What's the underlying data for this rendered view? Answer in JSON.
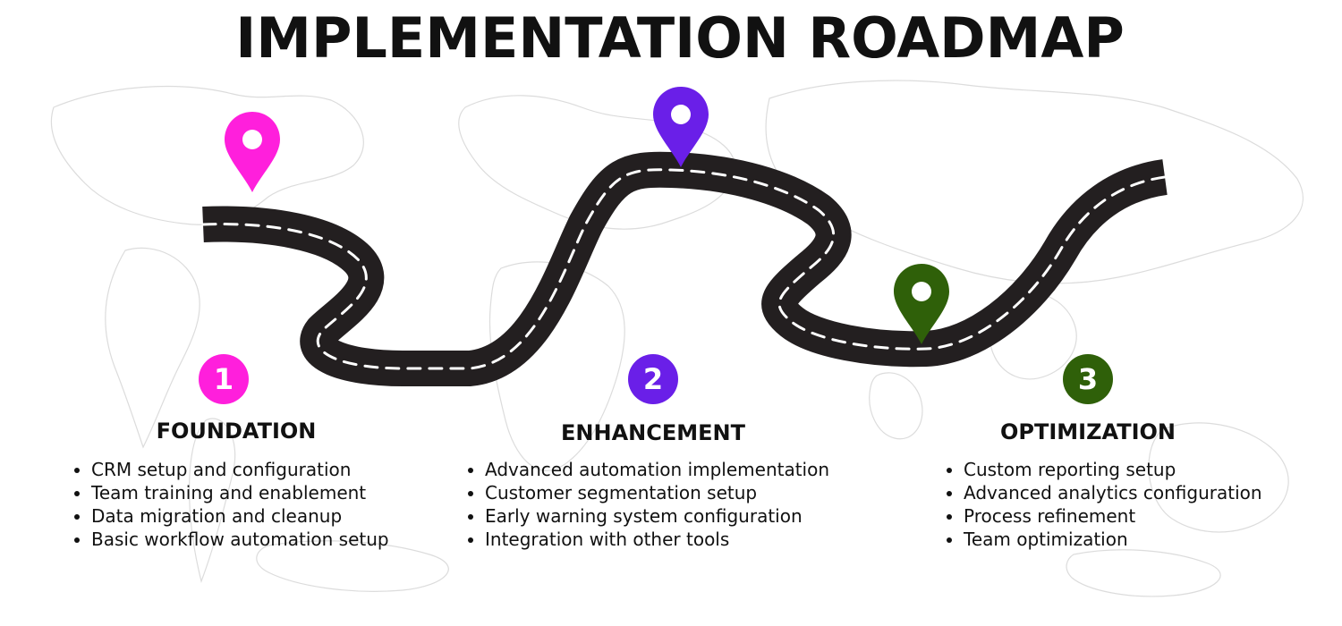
{
  "title": "IMPLEMENTATION ROADMAP",
  "colors": {
    "background": "#ffffff",
    "road": "#231f20",
    "road_dash": "#ffffff",
    "phase1": "#ff1fdc",
    "phase2": "#6a1fe8",
    "phase3": "#2f6009",
    "text": "#111111"
  },
  "phases": [
    {
      "number": "1",
      "title": "FOUNDATION",
      "items": [
        "CRM setup and configuration",
        "Team training and enablement",
        "Data migration and cleanup",
        "Basic workflow automation setup"
      ]
    },
    {
      "number": "2",
      "title": "ENHANCEMENT",
      "items": [
        "Advanced automation implementation",
        "Customer segmentation setup",
        "Early warning system configuration",
        "Integration with other tools"
      ]
    },
    {
      "number": "3",
      "title": "OPTIMIZATION",
      "items": [
        "Custom reporting setup",
        "Advanced analytics configuration",
        "Process refinement",
        "Team optimization"
      ]
    }
  ],
  "icons": {
    "pins": [
      "map-pin-icon",
      "map-pin-icon",
      "map-pin-icon"
    ],
    "road": "winding-road-icon",
    "background": "world-map-outline"
  }
}
